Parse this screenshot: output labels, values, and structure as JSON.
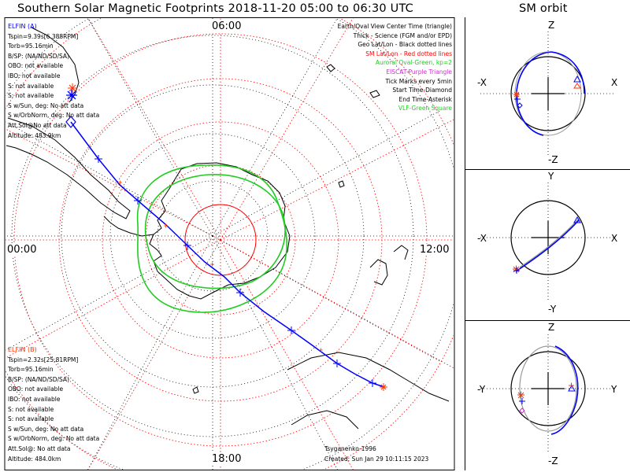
{
  "header": {
    "title": "Southern Solar Magnetic Footprints 2018-11-20 05:00 to 06:30 UTC",
    "orbit_title": "SM orbit"
  },
  "clock_labels": {
    "top": "06:00",
    "left": "00:00",
    "right": "12:00",
    "bottom": "18:00"
  },
  "legend": [
    {
      "text": "Earth/Oval View Center Time (triangle)",
      "color": "#000000"
    },
    {
      "text": "Thick - Science (FGM and/or EPD)",
      "color": "#000000"
    },
    {
      "text": "Geo Lat/Lon - Black dotted lines",
      "color": "#000000"
    },
    {
      "text": "SM Lat/Lon - Red dotted lines",
      "color": "#ff0000"
    },
    {
      "text": "Auroral Oval-Green, kp=2",
      "color": "#22cc22"
    },
    {
      "text": "EISCAT-Purple Triangle",
      "color": "#cc33cc"
    },
    {
      "text": "Tick Marks every 5min",
      "color": "#000000"
    },
    {
      "text": "Start Time-Diamond",
      "color": "#000000"
    },
    {
      "text": "End Time-Asterisk",
      "color": "#000000"
    },
    {
      "text": "VLF-Green Square",
      "color": "#22cc22"
    }
  ],
  "elfin_a": {
    "name": "ELFIN (A)",
    "color": "#0000ff",
    "lines": [
      "Tspin=9.39s[6.388RPM]",
      "Torb=95.16min",
      "B/SP: (NA/ND/SD/SA)",
      "OBO: not available",
      "IBO: not available",
      "S: not available",
      "S: not available",
      "S w/Sun, deg: No att data",
      "S w/OrbNorm, deg: No att data",
      "Att.Sol@No att data",
      "Altitude: 483.9km"
    ]
  },
  "elfin_b": {
    "name": "ELFIN (B)",
    "color": "#ff3300",
    "lines": [
      "Tspin=2.32s[25.81RPM]",
      "Torb=95.16min",
      "B/SP: (NA/ND/SD/SA)",
      "OBO: not available",
      "IBO: not available",
      "S: not available",
      "S: not available",
      "S w/Sun, deg: No att data",
      "S w/OrbNorm, deg: No att data",
      "Att.Sol@: No att data",
      "Altitude: 484.0km"
    ]
  },
  "footer": {
    "credit": "Tsyganenko-1996",
    "created": "Created: Sun Jan 29 10:11:15 2023"
  },
  "orbit_panels": [
    {
      "top": "Z",
      "bottom": "-Z",
      "left": "-X",
      "right": "X"
    },
    {
      "top": "Y",
      "bottom": "-Y",
      "left": "-X",
      "right": "X"
    },
    {
      "top": "Z",
      "bottom": "-Z",
      "left": "-Y",
      "right": "Y"
    }
  ],
  "colors": {
    "track": "#0000ff",
    "sm_grid": "#ff0000",
    "oval": "#22cc22",
    "elfin_b": "#ff3300",
    "orbit_grey": "#999999"
  }
}
